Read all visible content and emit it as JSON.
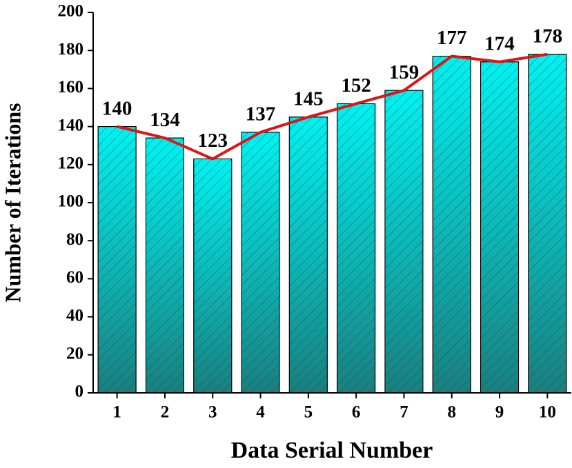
{
  "chart_data": {
    "type": "bar",
    "x_label": "Data Serial Number",
    "y_label": "Number of Iterations",
    "categories": [
      "1",
      "2",
      "3",
      "4",
      "5",
      "6",
      "7",
      "8",
      "9",
      "10"
    ],
    "values": [
      140,
      134,
      123,
      137,
      145,
      152,
      159,
      177,
      174,
      178
    ],
    "color_top": "#00f2f2",
    "color_bottom": "#1a7f7f",
    "line_color": "#e01414",
    "ylim": [
      0,
      200
    ],
    "yticks": [
      0,
      20,
      40,
      60,
      80,
      100,
      120,
      140,
      160,
      180,
      200
    ]
  }
}
